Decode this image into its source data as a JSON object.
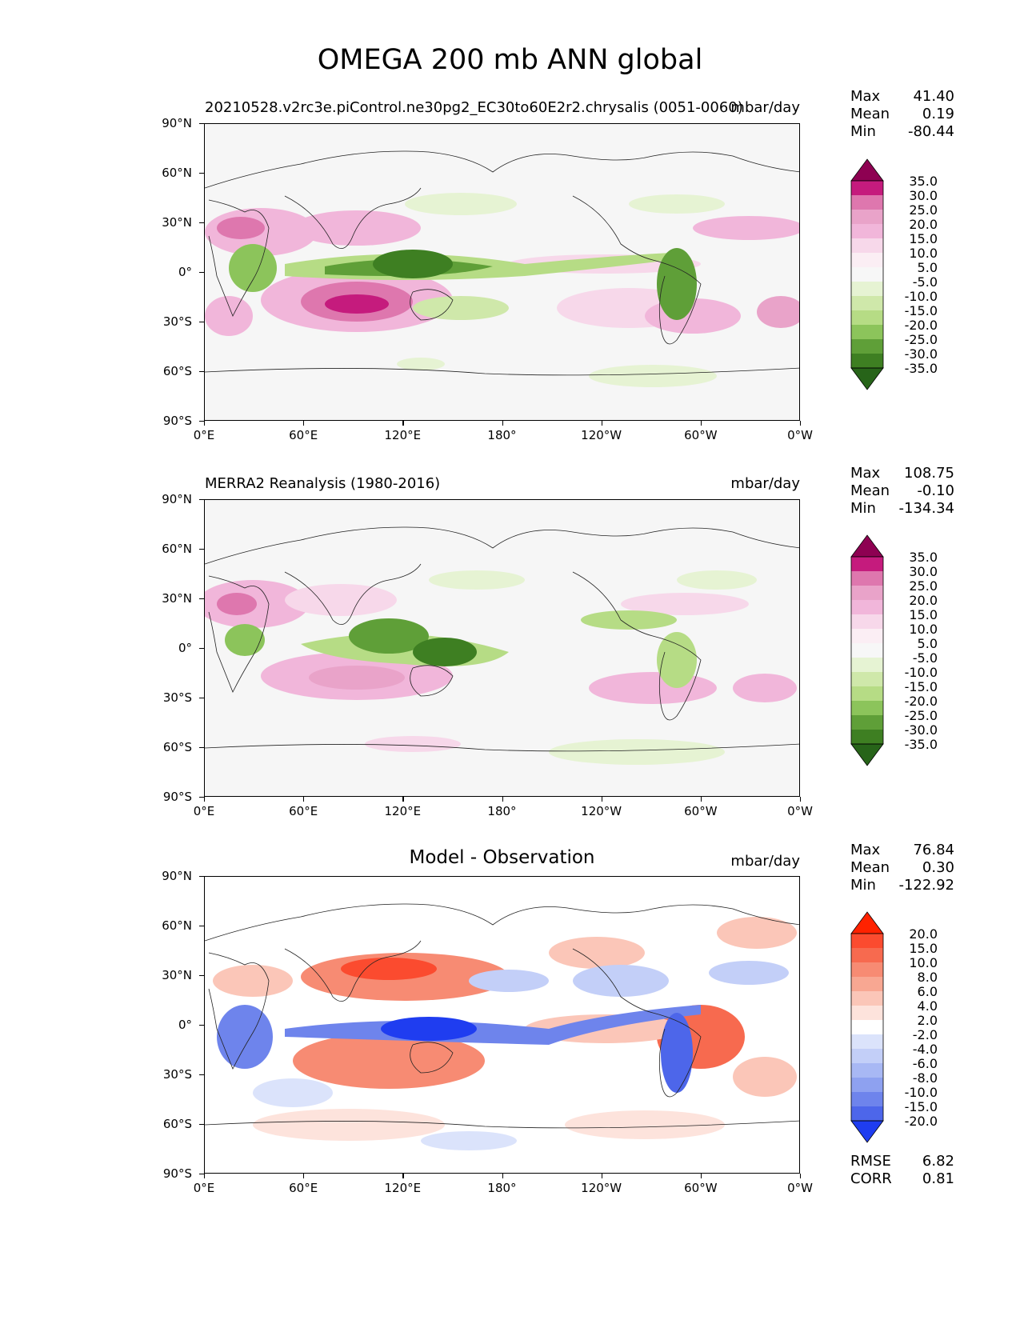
{
  "title": "OMEGA 200 mb ANN global",
  "xticks": [
    "0°E",
    "60°E",
    "120°E",
    "180°",
    "120°W",
    "60°W",
    "0°W"
  ],
  "yticks": [
    "90°N",
    "60°N",
    "30°N",
    "0°",
    "30°S",
    "60°S",
    "90°S"
  ],
  "panels": [
    {
      "subtitle": "20210528.v2rc3e.piControl.ne30pg2_EC30to60E2r2.chrysalis (0051-0060)",
      "units": "mbar/day",
      "center_title": "",
      "stats": {
        "max_label": "Max",
        "max": "41.40",
        "mean_label": "Mean",
        "mean": "0.19",
        "min_label": "Min",
        "min": "-80.44"
      },
      "colorbar": {
        "labels": [
          "35.0",
          "30.0",
          "25.0",
          "20.0",
          "15.0",
          "10.0",
          "5.0",
          "-5.0",
          "-10.0",
          "-15.0",
          "-20.0",
          "-25.0",
          "-30.0",
          "-35.0"
        ],
        "colors": [
          "#8e0152",
          "#c51b7d",
          "#de77ae",
          "#e9a3c9",
          "#f1b6da",
          "#f7d8ea",
          "#fbeef4",
          "#f7f7f7",
          "#e6f3d3",
          "#cfe8aa",
          "#b6dc85",
          "#8cc45b",
          "#5f9f38",
          "#3e7f22",
          "#276419"
        ]
      },
      "extra": null
    },
    {
      "subtitle": "MERRA2 Reanalysis (1980-2016)",
      "units": "mbar/day",
      "center_title": "",
      "stats": {
        "max_label": "Max",
        "max": "108.75",
        "mean_label": "Mean",
        "mean": "-0.10",
        "min_label": "Min",
        "min": "-134.34"
      },
      "colorbar": {
        "labels": [
          "35.0",
          "30.0",
          "25.0",
          "20.0",
          "15.0",
          "10.0",
          "5.0",
          "-5.0",
          "-10.0",
          "-15.0",
          "-20.0",
          "-25.0",
          "-30.0",
          "-35.0"
        ],
        "colors": [
          "#8e0152",
          "#c51b7d",
          "#de77ae",
          "#e9a3c9",
          "#f1b6da",
          "#f7d8ea",
          "#fbeef4",
          "#f7f7f7",
          "#e6f3d3",
          "#cfe8aa",
          "#b6dc85",
          "#8cc45b",
          "#5f9f38",
          "#3e7f22",
          "#276419"
        ]
      },
      "extra": null
    },
    {
      "subtitle": "",
      "units": "mbar/day",
      "center_title": "Model - Observation",
      "stats": {
        "max_label": "Max",
        "max": "76.84",
        "mean_label": "Mean",
        "mean": "0.30",
        "min_label": "Min",
        "min": "-122.92"
      },
      "colorbar": {
        "labels": [
          "20.0",
          "15.0",
          "10.0",
          "8.0",
          "6.0",
          "4.0",
          "2.0",
          "-2.0",
          "-4.0",
          "-6.0",
          "-8.0",
          "-10.0",
          "-15.0",
          "-20.0"
        ],
        "colors": [
          "#ff2200",
          "#fb4b2f",
          "#f76a4f",
          "#f78b73",
          "#f8a792",
          "#fbc6b8",
          "#fde3dc",
          "#ffffff",
          "#dbe3fb",
          "#c3cff8",
          "#a8b8f4",
          "#8ea1f0",
          "#6e84ec",
          "#4d66ea",
          "#1f3df0"
        ]
      },
      "extra": {
        "rmse_label": "RMSE",
        "rmse": "6.82",
        "corr_label": "CORR",
        "corr": "0.81"
      }
    }
  ]
}
